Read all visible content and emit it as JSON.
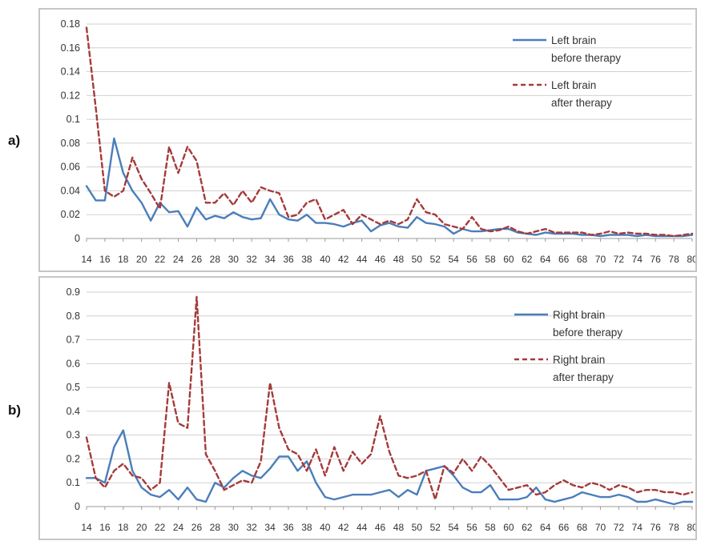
{
  "panel_labels": [
    "a)",
    "b)"
  ],
  "chart_data": [
    {
      "type": "line",
      "panel": "a)",
      "xlabel": "",
      "ylabel": "",
      "x_ticks": [
        14,
        16,
        18,
        20,
        22,
        24,
        26,
        28,
        30,
        32,
        34,
        36,
        38,
        40,
        42,
        44,
        46,
        48,
        50,
        52,
        54,
        56,
        58,
        60,
        62,
        64,
        66,
        68,
        70,
        72,
        74,
        76,
        78,
        80
      ],
      "y_ticks": [
        0,
        0.02,
        0.04,
        0.06,
        0.08,
        0.1,
        0.12,
        0.14,
        0.16,
        0.18
      ],
      "y_tick_labels": [
        "0",
        "0.02",
        "0.04",
        "0.06",
        "0.08",
        "0.1",
        "0.12",
        "0.14",
        "0.16",
        "0.18"
      ],
      "xlim": [
        14,
        80
      ],
      "ylim": [
        0,
        0.18
      ],
      "grid": "horizontal",
      "legend_position": "top-right",
      "series": [
        {
          "name": [
            "Left brain",
            "before therapy"
          ],
          "color": "#4a7ebb",
          "style": "solid",
          "x": [
            14,
            15,
            16,
            17,
            18,
            19,
            20,
            21,
            22,
            23,
            24,
            25,
            26,
            27,
            28,
            29,
            30,
            31,
            32,
            33,
            34,
            35,
            36,
            37,
            38,
            39,
            40,
            41,
            42,
            43,
            44,
            45,
            46,
            47,
            48,
            49,
            50,
            51,
            52,
            53,
            54,
            55,
            56,
            57,
            58,
            59,
            60,
            61,
            62,
            63,
            64,
            65,
            66,
            67,
            68,
            69,
            70,
            71,
            72,
            73,
            74,
            75,
            76,
            77,
            78,
            79,
            80
          ],
          "y": [
            0.044,
            0.032,
            0.032,
            0.084,
            0.055,
            0.04,
            0.03,
            0.015,
            0.03,
            0.022,
            0.023,
            0.01,
            0.026,
            0.016,
            0.019,
            0.017,
            0.022,
            0.018,
            0.016,
            0.017,
            0.033,
            0.02,
            0.016,
            0.015,
            0.02,
            0.013,
            0.013,
            0.012,
            0.01,
            0.013,
            0.015,
            0.006,
            0.011,
            0.013,
            0.01,
            0.009,
            0.018,
            0.013,
            0.012,
            0.01,
            0.004,
            0.008,
            0.006,
            0.006,
            0.007,
            0.008,
            0.008,
            0.005,
            0.004,
            0.003,
            0.005,
            0.004,
            0.004,
            0.004,
            0.003,
            0.003,
            0.002,
            0.003,
            0.003,
            0.003,
            0.002,
            0.003,
            0.002,
            0.002,
            0.002,
            0.002,
            0.003
          ]
        },
        {
          "name": [
            "Left brain",
            "after therapy"
          ],
          "color": "#a53a3a",
          "style": "dashed",
          "x": [
            14,
            15,
            16,
            17,
            18,
            19,
            20,
            21,
            22,
            23,
            24,
            25,
            26,
            27,
            28,
            29,
            30,
            31,
            32,
            33,
            34,
            35,
            36,
            37,
            38,
            39,
            40,
            41,
            42,
            43,
            44,
            45,
            46,
            47,
            48,
            49,
            50,
            51,
            52,
            53,
            54,
            55,
            56,
            57,
            58,
            59,
            60,
            61,
            62,
            63,
            64,
            65,
            66,
            67,
            68,
            69,
            70,
            71,
            72,
            73,
            74,
            75,
            76,
            77,
            78,
            79,
            80
          ],
          "y": [
            0.177,
            0.11,
            0.04,
            0.035,
            0.04,
            0.068,
            0.05,
            0.038,
            0.025,
            0.077,
            0.055,
            0.077,
            0.065,
            0.03,
            0.03,
            0.038,
            0.028,
            0.04,
            0.03,
            0.043,
            0.04,
            0.038,
            0.018,
            0.02,
            0.03,
            0.033,
            0.016,
            0.02,
            0.024,
            0.012,
            0.02,
            0.016,
            0.012,
            0.015,
            0.012,
            0.016,
            0.033,
            0.022,
            0.02,
            0.012,
            0.01,
            0.008,
            0.018,
            0.008,
            0.006,
            0.007,
            0.01,
            0.006,
            0.004,
            0.006,
            0.008,
            0.005,
            0.005,
            0.005,
            0.005,
            0.003,
            0.004,
            0.006,
            0.004,
            0.005,
            0.004,
            0.004,
            0.003,
            0.003,
            0.002,
            0.003,
            0.004
          ]
        }
      ]
    },
    {
      "type": "line",
      "panel": "b)",
      "xlabel": "",
      "ylabel": "",
      "x_ticks": [
        14,
        16,
        18,
        20,
        22,
        24,
        26,
        28,
        30,
        32,
        34,
        36,
        38,
        40,
        42,
        44,
        46,
        48,
        50,
        52,
        54,
        56,
        58,
        60,
        62,
        64,
        66,
        68,
        70,
        72,
        74,
        76,
        78,
        80
      ],
      "y_ticks": [
        0,
        0.1,
        0.2,
        0.3,
        0.4,
        0.5,
        0.6,
        0.7,
        0.8,
        0.9
      ],
      "y_tick_labels": [
        "0",
        "0.1",
        "0.2",
        "0.3",
        "0.4",
        "0.5",
        "0.6",
        "0.7",
        "0.8",
        "0.9"
      ],
      "xlim": [
        14,
        80
      ],
      "ylim": [
        0,
        0.9
      ],
      "grid": "horizontal",
      "legend_position": "top-right",
      "series": [
        {
          "name": [
            "Right brain",
            "before therapy"
          ],
          "color": "#4a7ebb",
          "style": "solid",
          "x": [
            14,
            15,
            16,
            17,
            18,
            19,
            20,
            21,
            22,
            23,
            24,
            25,
            26,
            27,
            28,
            29,
            30,
            31,
            32,
            33,
            34,
            35,
            36,
            37,
            38,
            39,
            40,
            41,
            42,
            43,
            44,
            45,
            46,
            47,
            48,
            49,
            50,
            51,
            52,
            53,
            54,
            55,
            56,
            57,
            58,
            59,
            60,
            61,
            62,
            63,
            64,
            65,
            66,
            67,
            68,
            69,
            70,
            71,
            72,
            73,
            74,
            75,
            76,
            77,
            78,
            79,
            80
          ],
          "y": [
            0.12,
            0.12,
            0.1,
            0.25,
            0.32,
            0.15,
            0.08,
            0.05,
            0.04,
            0.07,
            0.03,
            0.08,
            0.03,
            0.02,
            0.1,
            0.08,
            0.12,
            0.15,
            0.13,
            0.12,
            0.16,
            0.21,
            0.21,
            0.15,
            0.19,
            0.1,
            0.04,
            0.03,
            0.04,
            0.05,
            0.05,
            0.05,
            0.06,
            0.07,
            0.04,
            0.07,
            0.05,
            0.15,
            0.16,
            0.17,
            0.13,
            0.08,
            0.06,
            0.06,
            0.09,
            0.03,
            0.03,
            0.03,
            0.04,
            0.08,
            0.03,
            0.02,
            0.03,
            0.04,
            0.06,
            0.05,
            0.04,
            0.04,
            0.05,
            0.04,
            0.02,
            0.02,
            0.03,
            0.02,
            0.01,
            0.02,
            0.02
          ]
        },
        {
          "name": [
            "Right brain",
            "after therapy"
          ],
          "color": "#a53a3a",
          "style": "dashed",
          "x": [
            14,
            15,
            16,
            17,
            18,
            19,
            20,
            21,
            22,
            23,
            24,
            25,
            26,
            27,
            28,
            29,
            30,
            31,
            32,
            33,
            34,
            35,
            36,
            37,
            38,
            39,
            40,
            41,
            42,
            43,
            44,
            45,
            46,
            47,
            48,
            49,
            50,
            51,
            52,
            53,
            54,
            55,
            56,
            57,
            58,
            59,
            60,
            61,
            62,
            63,
            64,
            65,
            66,
            67,
            68,
            69,
            70,
            71,
            72,
            73,
            74,
            75,
            76,
            77,
            78,
            79,
            80
          ],
          "y": [
            0.29,
            0.12,
            0.08,
            0.15,
            0.18,
            0.13,
            0.12,
            0.07,
            0.1,
            0.52,
            0.35,
            0.33,
            0.88,
            0.22,
            0.15,
            0.07,
            0.09,
            0.11,
            0.1,
            0.19,
            0.52,
            0.33,
            0.24,
            0.22,
            0.15,
            0.24,
            0.13,
            0.25,
            0.15,
            0.23,
            0.18,
            0.22,
            0.38,
            0.23,
            0.13,
            0.12,
            0.13,
            0.15,
            0.03,
            0.17,
            0.14,
            0.2,
            0.15,
            0.21,
            0.17,
            0.12,
            0.07,
            0.08,
            0.09,
            0.05,
            0.06,
            0.09,
            0.11,
            0.09,
            0.08,
            0.1,
            0.09,
            0.07,
            0.09,
            0.08,
            0.06,
            0.07,
            0.07,
            0.06,
            0.06,
            0.05,
            0.06
          ]
        }
      ]
    }
  ]
}
